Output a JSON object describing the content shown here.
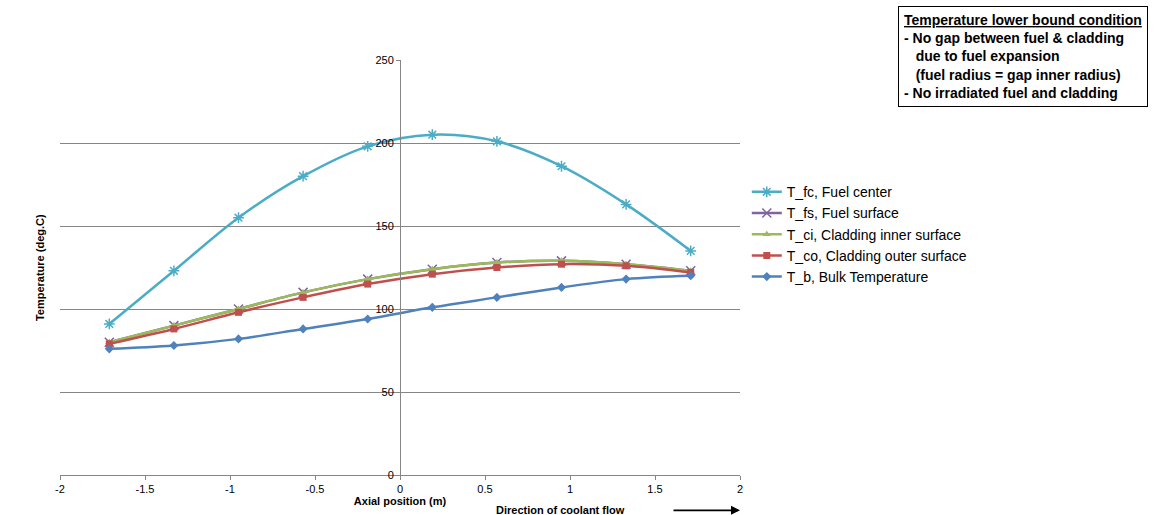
{
  "chart_data": {
    "type": "line",
    "x_label": "Axial position (m)",
    "y_label": "Temperature (deg.C)",
    "annotations": {
      "flow": "Direction of coolant flow",
      "box_title": "Temperature lower bound condition",
      "box_lines": [
        "- No gap between fuel & cladding",
        "due to fuel expansion",
        "(fuel radius = gap inner radius)",
        "- No irradiated fuel and cladding"
      ]
    },
    "x": [
      -1.71,
      -1.33,
      -0.95,
      -0.57,
      -0.19,
      0.19,
      0.57,
      0.95,
      1.33,
      1.71
    ],
    "series": [
      {
        "name": "T_fc, Fuel center",
        "color": "#4bacc6",
        "marker": "asterisk",
        "values": [
          91,
          123,
          155,
          180,
          198,
          205,
          201,
          186,
          163,
          135
        ]
      },
      {
        "name": "T_fs, Fuel surface",
        "color": "#8064a2",
        "marker": "x",
        "values": [
          80,
          90,
          100,
          110,
          118,
          124,
          128,
          129,
          127,
          123
        ]
      },
      {
        "name": "T_ci, Cladding inner surface",
        "color": "#9bbb59",
        "marker": "triangle",
        "values": [
          80,
          90,
          100,
          110,
          118,
          124,
          128,
          129,
          127,
          123
        ]
      },
      {
        "name": "T_co, Cladding outer surface",
        "color": "#c0504d",
        "marker": "square",
        "values": [
          79,
          88,
          98,
          107,
          115,
          121,
          125,
          127,
          126,
          122
        ]
      },
      {
        "name": "T_b, Bulk Temperature",
        "color": "#4f81bd",
        "marker": "diamond",
        "values": [
          76,
          78,
          82,
          88,
          94,
          101,
          107,
          113,
          118,
          120
        ]
      }
    ],
    "xlim": [
      -2,
      2
    ],
    "ylim": [
      0,
      250
    ],
    "xticks": [
      -2,
      -1.5,
      -1,
      -0.5,
      0,
      0.5,
      1,
      1.5,
      2
    ],
    "yticks": [
      0,
      50,
      100,
      150,
      200,
      250
    ],
    "grid": true,
    "legend": "right",
    "line_style": "smooth"
  }
}
